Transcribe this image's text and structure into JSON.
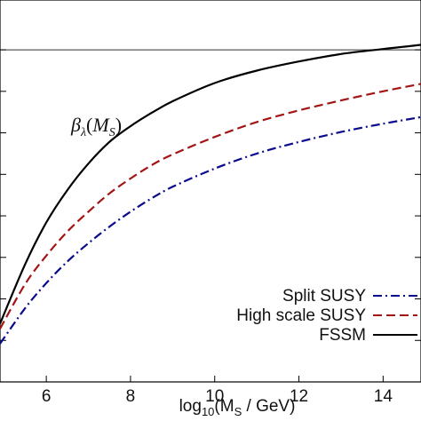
{
  "chart_data": {
    "type": "line",
    "title": "",
    "xlabel_parts": {
      "pre": "log",
      "sub1": "10",
      "mid": "(M",
      "sub2": "S",
      "post": " / GeV)"
    },
    "ylabel": "",
    "xlim": [
      4.9,
      14.9
    ],
    "ylim": [
      -0.2,
      0.03
    ],
    "x_ticks": [
      6,
      8,
      10,
      12,
      14
    ],
    "y_ticks": [
      0.0,
      -0.025,
      -0.05,
      -0.075,
      -0.1,
      -0.125,
      -0.15,
      -0.175
    ],
    "reference_line_y": 0.0,
    "annotation": {
      "main": "β",
      "sub1": "λ",
      "paren_open": "(",
      "arg": "M",
      "sub2": "S",
      "paren_close": ")"
    },
    "legend_placement": "bottom-right",
    "series": [
      {
        "name": "Split SUSY",
        "color": "#0a0a8c",
        "style": "dash-dot",
        "x": [
          4.9,
          5.5,
          6,
          6.5,
          7,
          7.5,
          8,
          8.5,
          9,
          10,
          11,
          12,
          13,
          14,
          14.9
        ],
        "y": [
          -0.177,
          -0.1555,
          -0.1405,
          -0.1275,
          -0.1165,
          -0.1065,
          -0.0975,
          -0.0895,
          -0.0825,
          -0.0715,
          -0.0625,
          -0.0555,
          -0.0495,
          -0.0445,
          -0.0405
        ]
      },
      {
        "name": "High scale SUSY",
        "color": "#a31515",
        "style": "dashed",
        "x": [
          4.9,
          5.5,
          6,
          6.5,
          7,
          7.5,
          8,
          8.5,
          9,
          10,
          11,
          12,
          13,
          14,
          14.9
        ],
        "y": [
          -0.168,
          -0.141,
          -0.124,
          -0.1095,
          -0.0975,
          -0.0865,
          -0.0775,
          -0.0695,
          -0.063,
          -0.0525,
          -0.0435,
          -0.0365,
          -0.0305,
          -0.025,
          -0.0205
        ]
      },
      {
        "name": "FSSM",
        "color": "#000000",
        "style": "solid",
        "x": [
          4.9,
          5.5,
          6,
          6.5,
          7,
          7.5,
          8,
          8.5,
          9,
          10,
          11,
          12,
          13,
          14,
          14.9
        ],
        "y": [
          -0.165,
          -0.129,
          -0.104,
          -0.0845,
          -0.0685,
          -0.0555,
          -0.046,
          -0.038,
          -0.031,
          -0.02,
          -0.0125,
          -0.007,
          -0.0025,
          0.0005,
          0.003
        ]
      }
    ]
  }
}
